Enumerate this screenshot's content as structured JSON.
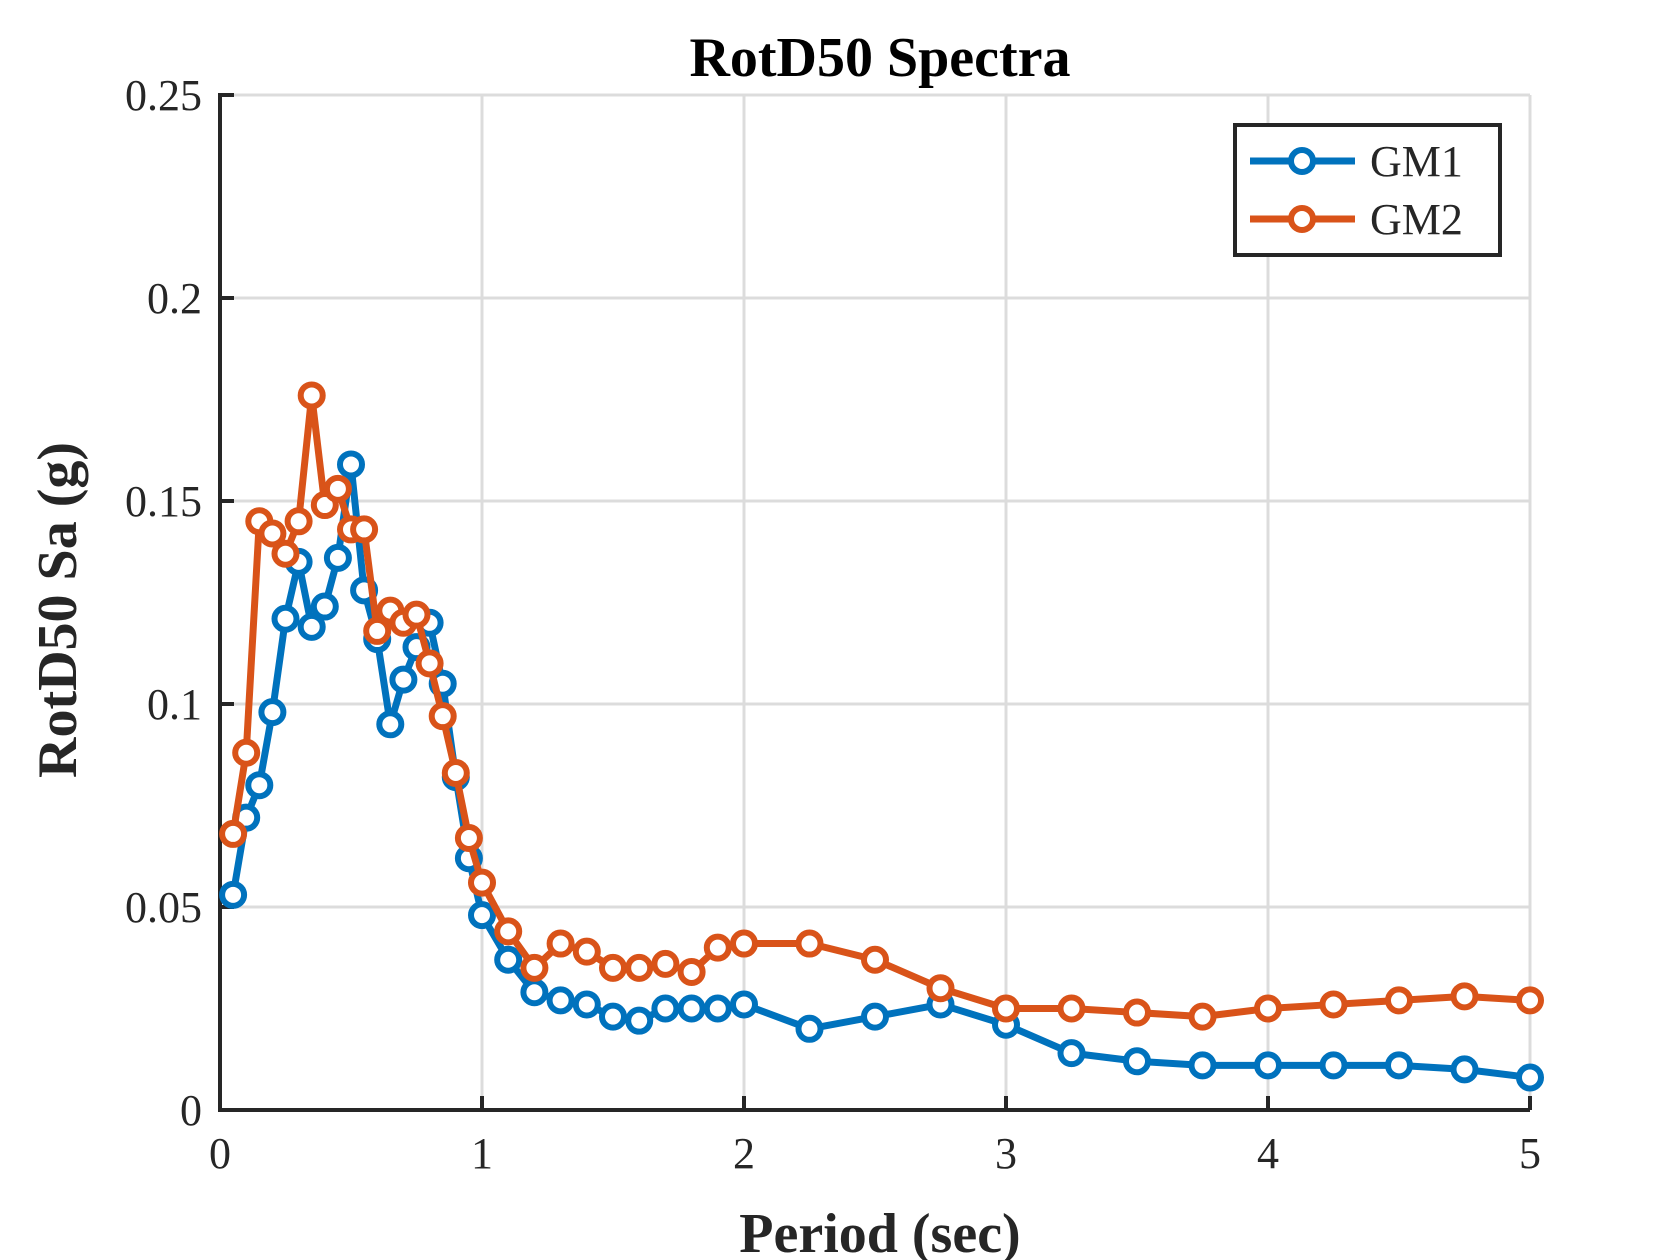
{
  "chart_data": {
    "type": "line",
    "title": "RotD50 Spectra",
    "xlabel": "Period (sec)",
    "ylabel": "RotD50 Sa (g)",
    "xlim": [
      0,
      5
    ],
    "ylim": [
      0,
      0.25
    ],
    "xticks": [
      0,
      1,
      2,
      3,
      4,
      5
    ],
    "xtick_labels": [
      "0",
      "1",
      "2",
      "3",
      "4",
      "5"
    ],
    "yticks": [
      0,
      0.05,
      0.1,
      0.15,
      0.2,
      0.25
    ],
    "ytick_labels": [
      "0",
      "0.05",
      "0.1",
      "0.15",
      "0.2",
      "0.25"
    ],
    "grid": true,
    "legend_position": "top-right",
    "marker": "circle",
    "series": [
      {
        "name": "GM1",
        "color": "#0072BD",
        "x": [
          0.05,
          0.1,
          0.15,
          0.2,
          0.25,
          0.3,
          0.35,
          0.4,
          0.45,
          0.5,
          0.55,
          0.6,
          0.65,
          0.7,
          0.75,
          0.8,
          0.85,
          0.9,
          0.95,
          1.0,
          1.1,
          1.2,
          1.3,
          1.4,
          1.5,
          1.6,
          1.7,
          1.8,
          1.9,
          2.0,
          2.25,
          2.5,
          2.75,
          3.0,
          3.25,
          3.5,
          3.75,
          4.0,
          4.25,
          4.5,
          4.75,
          5.0
        ],
        "y": [
          0.053,
          0.072,
          0.08,
          0.098,
          0.121,
          0.135,
          0.119,
          0.124,
          0.136,
          0.159,
          0.128,
          0.116,
          0.095,
          0.106,
          0.114,
          0.12,
          0.105,
          0.082,
          0.062,
          0.048,
          0.037,
          0.029,
          0.027,
          0.026,
          0.023,
          0.022,
          0.025,
          0.025,
          0.025,
          0.026,
          0.02,
          0.023,
          0.026,
          0.021,
          0.014,
          0.012,
          0.011,
          0.011,
          0.011,
          0.011,
          0.01,
          0.008
        ]
      },
      {
        "name": "GM2",
        "color": "#D95319",
        "x": [
          0.05,
          0.1,
          0.15,
          0.2,
          0.25,
          0.3,
          0.35,
          0.4,
          0.45,
          0.5,
          0.55,
          0.6,
          0.65,
          0.7,
          0.75,
          0.8,
          0.85,
          0.9,
          0.95,
          1.0,
          1.1,
          1.2,
          1.3,
          1.4,
          1.5,
          1.6,
          1.7,
          1.8,
          1.9,
          2.0,
          2.25,
          2.5,
          2.75,
          3.0,
          3.25,
          3.5,
          3.75,
          4.0,
          4.25,
          4.5,
          4.75,
          5.0
        ],
        "y": [
          0.068,
          0.088,
          0.145,
          0.142,
          0.137,
          0.145,
          0.176,
          0.149,
          0.153,
          0.143,
          0.143,
          0.118,
          0.123,
          0.12,
          0.122,
          0.11,
          0.097,
          0.083,
          0.067,
          0.056,
          0.044,
          0.035,
          0.041,
          0.039,
          0.035,
          0.035,
          0.036,
          0.034,
          0.04,
          0.041,
          0.041,
          0.037,
          0.03,
          0.025,
          0.025,
          0.024,
          0.023,
          0.025,
          0.026,
          0.027,
          0.028,
          0.027
        ]
      }
    ]
  }
}
